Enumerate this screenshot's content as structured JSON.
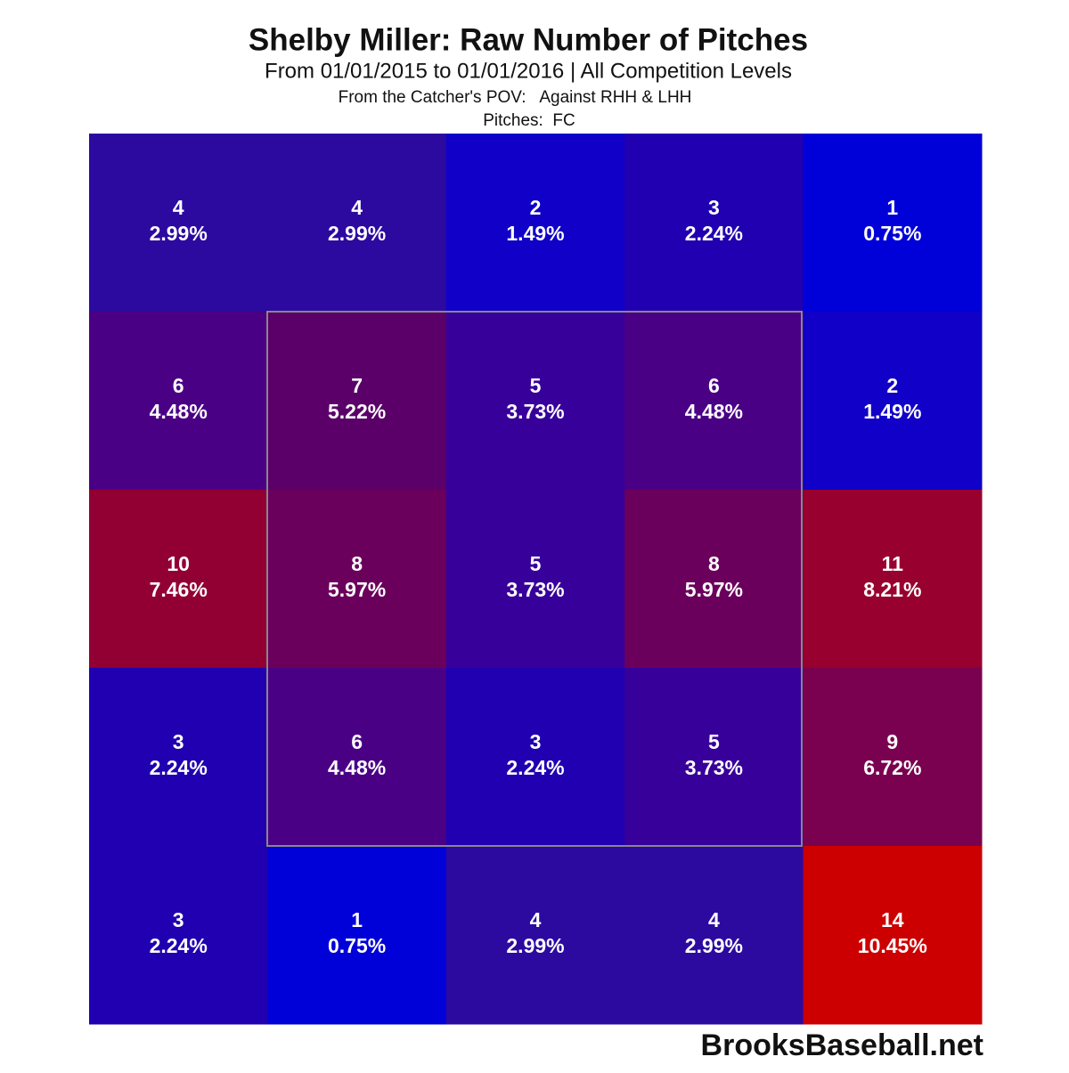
{
  "chart_data": {
    "type": "heatmap",
    "title": "Shelby Miller: Raw Number of Pitches",
    "subtitle": "From 01/01/2015 to 01/01/2016 | All Competition Levels",
    "subtitle2": "From the Catcher's POV:   Against RHH & LHH",
    "subtitle3": "Pitches:  FC",
    "source": "BrooksBaseball.net",
    "values": [
      [
        4,
        4,
        2,
        3,
        1
      ],
      [
        6,
        7,
        5,
        6,
        2
      ],
      [
        10,
        8,
        5,
        8,
        11
      ],
      [
        3,
        6,
        3,
        5,
        9
      ],
      [
        3,
        1,
        4,
        4,
        14
      ]
    ],
    "percents": [
      [
        2.99,
        2.99,
        1.49,
        2.24,
        0.75
      ],
      [
        4.48,
        5.22,
        3.73,
        4.48,
        1.49
      ],
      [
        7.46,
        5.97,
        3.73,
        5.97,
        8.21
      ],
      [
        2.24,
        4.48,
        2.24,
        3.73,
        6.72
      ],
      [
        2.24,
        0.75,
        2.99,
        2.99,
        10.45
      ]
    ],
    "percent_value_labels": [
      [
        "2.99%",
        "2.99%",
        "1.49%",
        "2.24%",
        "0.75%"
      ],
      [
        "4.48%",
        "5.22%",
        "3.73%",
        "4.48%",
        "1.49%"
      ],
      [
        "7.46%",
        "5.97%",
        "3.73%",
        "5.97%",
        "8.21%"
      ],
      [
        "2.24%",
        "4.48%",
        "2.24%",
        "3.73%",
        "6.72%"
      ],
      [
        "2.24%",
        "0.75%",
        "2.99%",
        "2.99%",
        "10.45%"
      ]
    ],
    "colors": [
      [
        "#2c0aa0",
        "#2c0aa0",
        "#1000c8",
        "#2000b0",
        "#0000d8"
      ],
      [
        "#4a0085",
        "#5a0068",
        "#38009a",
        "#4a0085",
        "#1000c8"
      ],
      [
        "#920033",
        "#6a005c",
        "#38009a",
        "#6a005c",
        "#980030"
      ],
      [
        "#2000b0",
        "#4a0085",
        "#2000b0",
        "#38009a",
        "#7a0050"
      ],
      [
        "#2000b0",
        "#0000d8",
        "#2c0aa0",
        "#2c0aa0",
        "#cc0000"
      ]
    ]
  }
}
